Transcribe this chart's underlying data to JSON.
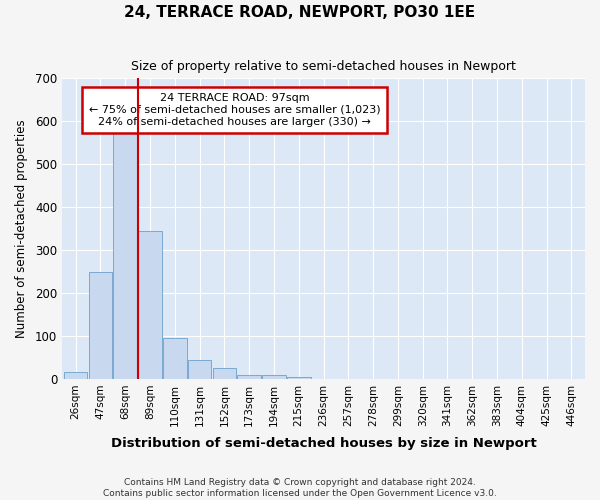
{
  "title": "24, TERRACE ROAD, NEWPORT, PO30 1EE",
  "subtitle": "Size of property relative to semi-detached houses in Newport",
  "xlabel": "Distribution of semi-detached houses by size in Newport",
  "ylabel": "Number of semi-detached properties",
  "categories": [
    "26sqm",
    "47sqm",
    "68sqm",
    "89sqm",
    "110sqm",
    "131sqm",
    "152sqm",
    "173sqm",
    "194sqm",
    "215sqm",
    "236sqm",
    "257sqm",
    "278sqm",
    "299sqm",
    "320sqm",
    "341sqm",
    "362sqm",
    "383sqm",
    "404sqm",
    "425sqm",
    "446sqm"
  ],
  "values": [
    15,
    250,
    580,
    345,
    95,
    45,
    25,
    10,
    10,
    5,
    0,
    0,
    0,
    0,
    0,
    0,
    0,
    0,
    0,
    0,
    0
  ],
  "bar_color": "#c8d8ee",
  "bar_edgecolor": "#7aaad0",
  "redline_bin_index": 2,
  "annotation_text": "24 TERRACE ROAD: 97sqm\n← 75% of semi-detached houses are smaller (1,023)\n24% of semi-detached houses are larger (330) →",
  "annotation_box_color": "#ffffff",
  "annotation_box_edgecolor": "#cc0000",
  "ylim": [
    0,
    700
  ],
  "yticks": [
    0,
    100,
    200,
    300,
    400,
    500,
    600,
    700
  ],
  "plot_background_color": "#dce8f5",
  "grid_color": "#ffffff",
  "fig_background_color": "#f5f5f5",
  "footer_line1": "Contains HM Land Registry data © Crown copyright and database right 2024.",
  "footer_line2": "Contains public sector information licensed under the Open Government Licence v3.0."
}
